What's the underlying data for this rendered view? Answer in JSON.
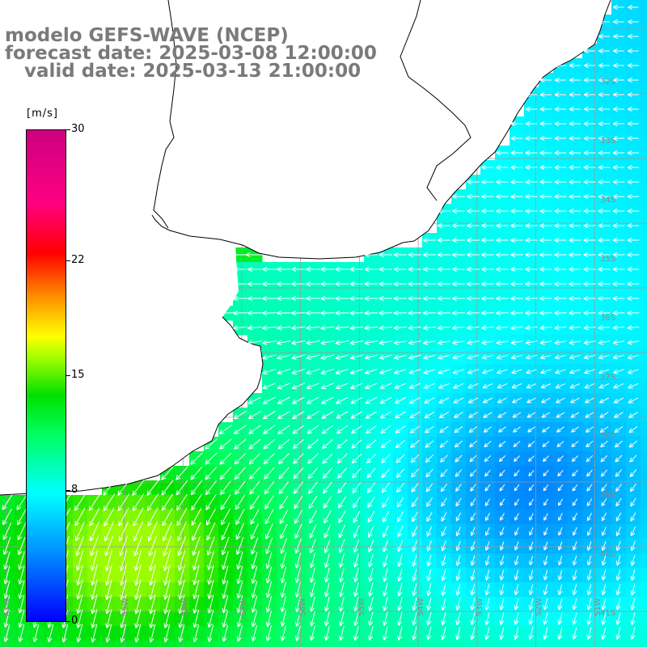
{
  "title": {
    "line1": "modelo GEFS-WAVE (NCEP)",
    "line2": "forecast date: 2025-03-08 12:00:00",
    "line3": "   valid date: 2025-03-13 21:00:00"
  },
  "colorbar": {
    "unit": "[m/s]",
    "range": [
      0,
      30
    ],
    "ticks": [
      {
        "value": 30,
        "label": "30"
      },
      {
        "value": 22,
        "label": "22"
      },
      {
        "value": 15,
        "label": "15"
      },
      {
        "value": 8,
        "label": "8"
      },
      {
        "value": 0,
        "label": "0"
      }
    ],
    "colors": [
      "#0000ff",
      "#0090ff",
      "#00ffff",
      "#00ff60",
      "#00e000",
      "#aaff00",
      "#ffff00",
      "#ff9000",
      "#ff0000",
      "#ff0080",
      "#cc0080"
    ]
  },
  "map": {
    "lon_range": [
      -61,
      -50
    ],
    "lat_range": [
      -41,
      -31
    ],
    "lat_labels": [
      "32S",
      "33S",
      "34S",
      "35S",
      "36S",
      "37S",
      "38S",
      "39S",
      "40S",
      "41S"
    ],
    "lon_labels": [
      "61W",
      "60W",
      "59W",
      "58W",
      "57W",
      "56W",
      "55W",
      "54W",
      "53W",
      "52W",
      "51W",
      "50W"
    ],
    "grid": true,
    "land_color": "#ffffff",
    "coastline_color": "#000000",
    "arrow_color": "#ffffff",
    "field_description": "wind speed and direction over ocean"
  }
}
